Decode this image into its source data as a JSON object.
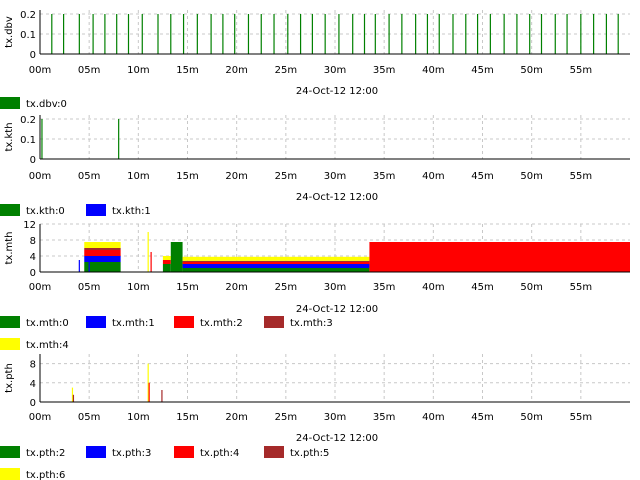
{
  "chart_data": [
    {
      "type": "bar",
      "ylabel": "tx.dbv",
      "xlabel": "24-Oct-12 12:00",
      "x_ticks": [
        "00m",
        "05m",
        "10m",
        "15m",
        "20m",
        "25m",
        "30m",
        "35m",
        "40m",
        "45m",
        "50m",
        "55m"
      ],
      "y_ticks": [
        "0",
        "0.1",
        "0.2"
      ],
      "ylim": [
        0,
        0.22
      ],
      "xlim": [
        0,
        60
      ],
      "grid": true,
      "legend": [
        {
          "name": "tx.dbv:0",
          "color": "#008000"
        }
      ],
      "spikes": [
        {
          "series": 0,
          "height": 0.2,
          "times": [
            1.2,
            2.4,
            4.0,
            5.4,
            6.6,
            7.8,
            9.0,
            10.4,
            12.0,
            13.3,
            14.6,
            16.0,
            17.4,
            18.6,
            19.8,
            21.2,
            22.5,
            23.8,
            25.2,
            26.5,
            27.7,
            29.0,
            30.4,
            31.8,
            33.0,
            34.1,
            35.5,
            36.8,
            38.2,
            39.4,
            40.6,
            42.0,
            43.3,
            44.5,
            45.8,
            47.2,
            48.5,
            49.8,
            51.0,
            52.4,
            53.6,
            55.0,
            56.3,
            57.6,
            58.8
          ]
        }
      ]
    },
    {
      "type": "bar",
      "ylabel": "tx.kth",
      "xlabel": "24-Oct-12 12:00",
      "x_ticks": [
        "00m",
        "05m",
        "10m",
        "15m",
        "20m",
        "25m",
        "30m",
        "35m",
        "40m",
        "45m",
        "50m",
        "55m"
      ],
      "y_ticks": [
        "0",
        "0.1",
        "0.2"
      ],
      "ylim": [
        0,
        0.22
      ],
      "xlim": [
        0,
        60
      ],
      "grid": true,
      "legend": [
        {
          "name": "tx.kth:0",
          "color": "#008000"
        },
        {
          "name": "tx.kth:1",
          "color": "#0000ff"
        }
      ],
      "spikes": [
        {
          "series": 0,
          "height": 0.2,
          "times": [
            0.2,
            8.0
          ]
        }
      ]
    },
    {
      "type": "area",
      "ylabel": "tx.mth",
      "xlabel": "24-Oct-12 12:00",
      "x_ticks": [
        "00m",
        "05m",
        "10m",
        "15m",
        "20m",
        "25m",
        "30m",
        "35m",
        "40m",
        "45m",
        "50m",
        "55m"
      ],
      "y_ticks": [
        "0",
        "4",
        "8",
        "12"
      ],
      "ylim": [
        0,
        12
      ],
      "xlim": [
        0,
        60
      ],
      "grid": true,
      "legend": [
        {
          "name": "tx.mth:0",
          "color": "#008000"
        },
        {
          "name": "tx.mth:1",
          "color": "#0000ff"
        },
        {
          "name": "tx.mth:2",
          "color": "#ff0000"
        },
        {
          "name": "tx.mth:3",
          "color": "#a52a2a"
        },
        {
          "name": "tx.mth:4",
          "color": "#ffff00"
        }
      ],
      "bands": [
        {
          "x0": 4.5,
          "x1": 8.2,
          "stack": [
            [
              0,
              2.5
            ],
            [
              1,
              1.5
            ],
            [
              2,
              1.5
            ],
            [
              3,
              0.5
            ],
            [
              4,
              1.5
            ]
          ]
        },
        {
          "x0": 12.5,
          "x1": 13.3,
          "stack": [
            [
              0,
              2
            ],
            [
              2,
              1
            ],
            [
              4,
              1
            ]
          ]
        },
        {
          "x0": 13.3,
          "x1": 14.5,
          "stack": [
            [
              0,
              7.5
            ]
          ]
        },
        {
          "x0": 14.5,
          "x1": 33.5,
          "stack": [
            [
              0,
              1
            ],
            [
              1,
              1
            ],
            [
              2,
              0.5
            ],
            [
              3,
              0.3
            ],
            [
              4,
              1
            ]
          ]
        },
        {
          "x0": 33.5,
          "x1": 60,
          "stack": [
            [
              2,
              7.5
            ]
          ]
        }
      ],
      "spikes": [
        {
          "series": 4,
          "height": 10,
          "times": [
            11.0
          ]
        },
        {
          "series": 2,
          "height": 5,
          "times": [
            11.3
          ]
        },
        {
          "series": 1,
          "height": 3,
          "times": [
            4.0,
            5.0
          ]
        }
      ]
    },
    {
      "type": "bar",
      "ylabel": "tx.pth",
      "xlabel": "24-Oct-12 12:00",
      "x_ticks": [
        "00m",
        "05m",
        "10m",
        "15m",
        "20m",
        "25m",
        "30m",
        "35m",
        "40m",
        "45m",
        "50m",
        "55m"
      ],
      "y_ticks": [
        "0",
        "4",
        "8"
      ],
      "ylim": [
        0,
        10
      ],
      "xlim": [
        0,
        60
      ],
      "grid": true,
      "legend": [
        {
          "name": "tx.pth:2",
          "color": "#008000"
        },
        {
          "name": "tx.pth:3",
          "color": "#0000ff"
        },
        {
          "name": "tx.pth:4",
          "color": "#ff0000"
        },
        {
          "name": "tx.pth:5",
          "color": "#a52a2a"
        },
        {
          "name": "tx.pth:6",
          "color": "#ffff00"
        }
      ],
      "spikes": [
        {
          "series": 4,
          "height": 3,
          "times": [
            3.3
          ]
        },
        {
          "series": 3,
          "height": 1.5,
          "times": [
            3.4
          ]
        },
        {
          "series": 4,
          "height": 8,
          "times": [
            11.0
          ]
        },
        {
          "series": 2,
          "height": 4,
          "times": [
            11.1
          ]
        },
        {
          "series": 3,
          "height": 2.5,
          "times": [
            12.4
          ]
        }
      ]
    }
  ]
}
